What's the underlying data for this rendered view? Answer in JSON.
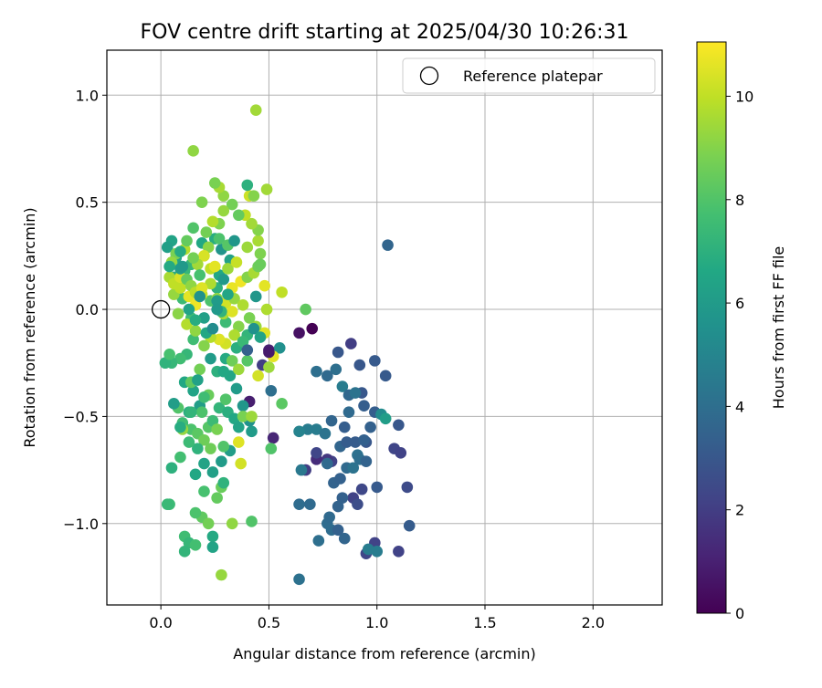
{
  "chart_data": {
    "type": "scatter",
    "title": "FOV centre drift starting at 2025/04/30 10:26:31",
    "xlabel": "Angular distance from reference (arcmin)",
    "ylabel": "Rotation from reference (arcmin)",
    "xlim": [
      -0.25,
      2.32
    ],
    "ylim": [
      -1.38,
      1.21
    ],
    "x_ticks": [
      0.0,
      0.5,
      1.0,
      1.5,
      2.0
    ],
    "x_tick_labels": [
      "0.0",
      "0.5",
      "1.0",
      "1.5",
      "2.0"
    ],
    "y_ticks": [
      -1.0,
      -0.5,
      0.0,
      0.5,
      1.0
    ],
    "y_tick_labels": [
      "−1.0",
      "−0.5",
      "0.0",
      "0.5",
      "1.0"
    ],
    "grid": true,
    "legend": {
      "position": "top-right",
      "entries": [
        "Reference platepar"
      ]
    },
    "reference_point": [
      0.0,
      0.0
    ],
    "colorbar": {
      "label": "Hours from first FF file",
      "colormap": "viridis",
      "min": 0,
      "max": 11.05,
      "ticks": [
        0,
        2,
        4,
        6,
        8,
        10
      ],
      "tick_labels": [
        "0",
        "2",
        "4",
        "6",
        "8",
        "10"
      ]
    },
    "points": [
      [
        0.93,
        -0.39,
        3.0
      ],
      [
        0.95,
        -0.62,
        3.0
      ],
      [
        1.0,
        -0.83,
        3.1
      ],
      [
        0.85,
        -0.55,
        3.3
      ],
      [
        0.9,
        -0.62,
        3.2
      ],
      [
        0.97,
        -0.55,
        3.4
      ],
      [
        1.1,
        -0.54,
        3.0
      ],
      [
        1.14,
        -0.83,
        2.5
      ],
      [
        1.15,
        -1.01,
        3.2
      ],
      [
        1.1,
        -1.13,
        2.2
      ],
      [
        0.99,
        -0.24,
        3.1
      ],
      [
        0.92,
        -0.26,
        3.0
      ],
      [
        0.82,
        -0.2,
        3.0
      ],
      [
        0.88,
        -0.16,
        2.0
      ],
      [
        1.04,
        -0.31,
        3.1
      ],
      [
        1.05,
        0.3,
        3.6
      ],
      [
        1.08,
        -0.65,
        2.3
      ],
      [
        1.11,
        -0.67,
        2.2
      ],
      [
        0.94,
        -0.45,
        3.3
      ],
      [
        0.99,
        -0.48,
        3.3
      ],
      [
        0.93,
        -0.84,
        2.4
      ],
      [
        0.89,
        -0.88,
        2.2
      ],
      [
        0.91,
        -0.91,
        2.6
      ],
      [
        0.95,
        -1.14,
        2.3
      ],
      [
        0.99,
        -1.09,
        2.2
      ],
      [
        0.83,
        -0.64,
        3.6
      ],
      [
        0.86,
        -0.74,
        3.8
      ],
      [
        0.8,
        -0.81,
        3.5
      ],
      [
        0.79,
        -0.71,
        2.2
      ],
      [
        0.77,
        -0.7,
        1.8
      ],
      [
        0.72,
        -0.7,
        1.4
      ],
      [
        0.67,
        -0.75,
        2.0
      ],
      [
        0.72,
        -0.67,
        2.3
      ],
      [
        0.79,
        -0.52,
        3.6
      ],
      [
        0.72,
        -0.56,
        4.6
      ],
      [
        0.68,
        -0.56,
        4.6
      ],
      [
        0.64,
        -0.57,
        4.9
      ],
      [
        0.76,
        -0.58,
        4.2
      ],
      [
        0.77,
        -0.72,
        3.8
      ],
      [
        0.83,
        -0.79,
        3.4
      ],
      [
        0.84,
        -0.88,
        3.4
      ],
      [
        0.82,
        -0.92,
        3.5
      ],
      [
        0.79,
        -1.03,
        3.9
      ],
      [
        0.82,
        -1.03,
        3.4
      ],
      [
        0.73,
        -1.08,
        4.0
      ],
      [
        0.77,
        -1.0,
        3.9
      ],
      [
        0.64,
        -1.26,
        4.1
      ],
      [
        0.64,
        -0.91,
        3.9
      ],
      [
        0.69,
        -0.91,
        3.8
      ],
      [
        0.78,
        -0.97,
        3.8
      ],
      [
        0.85,
        -1.07,
        3.6
      ],
      [
        0.96,
        -1.12,
        4.6
      ],
      [
        1.0,
        -1.13,
        4.6
      ],
      [
        0.72,
        -0.29,
        4.0
      ],
      [
        0.77,
        -0.31,
        3.8
      ],
      [
        0.81,
        -0.28,
        4.0
      ],
      [
        0.84,
        -0.36,
        4.6
      ],
      [
        0.87,
        -0.4,
        3.7
      ],
      [
        0.9,
        -0.39,
        4.2
      ],
      [
        0.87,
        -0.48,
        3.8
      ],
      [
        0.91,
        -0.68,
        4.1
      ],
      [
        0.89,
        -0.74,
        4.2
      ],
      [
        0.92,
        -0.7,
        4.0
      ],
      [
        0.95,
        -0.71,
        3.5
      ],
      [
        0.94,
        -0.61,
        3.4
      ],
      [
        0.86,
        -0.62,
        3.2
      ],
      [
        1.02,
        -0.49,
        5.3
      ],
      [
        1.04,
        -0.51,
        6.1
      ],
      [
        0.65,
        -0.75,
        4.4
      ],
      [
        0.64,
        -0.11,
        0.5
      ],
      [
        0.7,
        -0.09,
        0.0
      ],
      [
        0.41,
        -0.43,
        0.9
      ],
      [
        0.52,
        -0.6,
        1.2
      ],
      [
        0.5,
        -0.19,
        1.0
      ],
      [
        0.47,
        -0.26,
        2.0
      ],
      [
        0.51,
        -0.38,
        4.0
      ],
      [
        0.55,
        -0.18,
        5.5
      ],
      [
        0.42,
        -0.57,
        6.0
      ],
      [
        0.41,
        -0.52,
        5.6
      ],
      [
        0.38,
        -0.45,
        5.8
      ],
      [
        0.35,
        -0.37,
        6.0
      ],
      [
        0.32,
        -0.31,
        6.5
      ],
      [
        0.3,
        -0.23,
        6.7
      ],
      [
        0.35,
        -0.18,
        6.9
      ],
      [
        0.4,
        -0.12,
        7.2
      ],
      [
        0.3,
        -0.06,
        7.5
      ],
      [
        0.23,
        0.04,
        7.9
      ],
      [
        0.26,
        0.1,
        7.0
      ],
      [
        0.27,
        0.16,
        6.6
      ],
      [
        0.32,
        0.23,
        6.3
      ],
      [
        0.28,
        0.28,
        5.7
      ],
      [
        0.25,
        0.33,
        6.8
      ],
      [
        0.19,
        0.31,
        6.6
      ],
      [
        0.14,
        0.21,
        7.2
      ],
      [
        0.11,
        0.18,
        7.3
      ],
      [
        0.07,
        0.24,
        6.4
      ],
      [
        0.05,
        0.32,
        6.4
      ],
      [
        0.03,
        0.29,
        6.2
      ],
      [
        0.06,
        0.15,
        6.8
      ],
      [
        0.08,
        0.12,
        7.3
      ],
      [
        0.1,
        0.05,
        7.5
      ],
      [
        0.14,
        -0.04,
        7.6
      ],
      [
        0.15,
        -0.14,
        7.6
      ],
      [
        0.12,
        -0.21,
        7.3
      ],
      [
        0.09,
        -0.23,
        7.6
      ],
      [
        0.05,
        -0.25,
        7.3
      ],
      [
        0.02,
        -0.25,
        7.1
      ],
      [
        0.04,
        -0.21,
        7.8
      ],
      [
        0.11,
        -0.34,
        6.6
      ],
      [
        0.15,
        -0.38,
        6.4
      ],
      [
        0.18,
        -0.45,
        6.1
      ],
      [
        0.13,
        -0.48,
        6.9
      ],
      [
        0.1,
        -0.53,
        7.6
      ],
      [
        0.14,
        -0.56,
        7.9
      ],
      [
        0.17,
        -0.58,
        8.2
      ],
      [
        0.2,
        -0.61,
        8.6
      ],
      [
        0.22,
        -0.55,
        8.1
      ],
      [
        0.24,
        -0.52,
        7.5
      ],
      [
        0.27,
        -0.46,
        7.2
      ],
      [
        0.31,
        -0.48,
        6.9
      ],
      [
        0.34,
        -0.51,
        6.6
      ],
      [
        0.36,
        -0.55,
        6.4
      ],
      [
        0.32,
        -0.66,
        6.1
      ],
      [
        0.28,
        -0.71,
        6.0
      ],
      [
        0.24,
        -0.76,
        6.2
      ],
      [
        0.2,
        -0.72,
        6.4
      ],
      [
        0.16,
        -0.77,
        6.6
      ],
      [
        0.17,
        -0.65,
        7.1
      ],
      [
        0.13,
        -0.62,
        7.5
      ],
      [
        0.09,
        -0.69,
        7.7
      ],
      [
        0.05,
        -0.74,
        7.0
      ],
      [
        0.04,
        -0.91,
        7.5
      ],
      [
        0.03,
        -0.91,
        7.4
      ],
      [
        0.11,
        -1.06,
        7.6
      ],
      [
        0.13,
        -1.09,
        7.3
      ],
      [
        0.16,
        -1.1,
        7.7
      ],
      [
        0.11,
        -1.13,
        7.2
      ],
      [
        0.19,
        -0.97,
        8.3
      ],
      [
        0.22,
        -1.0,
        8.7
      ],
      [
        0.24,
        -1.06,
        6.7
      ],
      [
        0.24,
        -1.11,
        6.4
      ],
      [
        0.26,
        -0.88,
        8.4
      ],
      [
        0.28,
        -0.83,
        8.5
      ],
      [
        0.29,
        -0.81,
        7.1
      ],
      [
        0.33,
        -1.0,
        9.2
      ],
      [
        0.42,
        -0.99,
        8.0
      ],
      [
        0.28,
        -1.24,
        9.3
      ],
      [
        0.37,
        -0.72,
        10.3
      ],
      [
        0.36,
        -0.62,
        10.5
      ],
      [
        0.38,
        -0.5,
        8.8
      ],
      [
        0.42,
        -0.5,
        9.4
      ],
      [
        0.45,
        -0.31,
        10.3
      ],
      [
        0.5,
        -0.27,
        9.4
      ],
      [
        0.52,
        -0.22,
        10.6
      ],
      [
        0.48,
        -0.11,
        10.5
      ],
      [
        0.44,
        -0.08,
        9.4
      ],
      [
        0.41,
        -0.04,
        8.8
      ],
      [
        0.36,
        -0.08,
        9.0
      ],
      [
        0.34,
        -0.12,
        9.7
      ],
      [
        0.3,
        -0.16,
        10.3
      ],
      [
        0.27,
        -0.14,
        10.5
      ],
      [
        0.23,
        -0.13,
        9.8
      ],
      [
        0.2,
        -0.17,
        9.0
      ],
      [
        0.16,
        -0.1,
        9.2
      ],
      [
        0.12,
        -0.07,
        9.8
      ],
      [
        0.08,
        -0.02,
        9.1
      ],
      [
        0.06,
        0.07,
        9.3
      ],
      [
        0.09,
        0.1,
        10.0
      ],
      [
        0.13,
        0.06,
        10.6
      ],
      [
        0.16,
        0.02,
        10.8
      ],
      [
        0.19,
        0.07,
        10.1
      ],
      [
        0.23,
        0.12,
        9.7
      ],
      [
        0.26,
        0.05,
        9.2
      ],
      [
        0.29,
        -0.02,
        9.6
      ],
      [
        0.3,
        0.03,
        10.3
      ],
      [
        0.33,
        0.1,
        10.7
      ],
      [
        0.37,
        0.13,
        10.8
      ],
      [
        0.34,
        0.05,
        9.3
      ],
      [
        0.38,
        0.02,
        9.7
      ],
      [
        0.33,
        -0.01,
        10.5
      ],
      [
        0.4,
        0.15,
        9.0
      ],
      [
        0.43,
        0.17,
        9.6
      ],
      [
        0.45,
        0.2,
        8.6
      ],
      [
        0.46,
        0.26,
        8.9
      ],
      [
        0.45,
        0.32,
        9.6
      ],
      [
        0.45,
        0.37,
        9.0
      ],
      [
        0.42,
        0.4,
        9.5
      ],
      [
        0.39,
        0.44,
        10.0
      ],
      [
        0.36,
        0.44,
        8.4
      ],
      [
        0.33,
        0.49,
        8.7
      ],
      [
        0.29,
        0.53,
        9.2
      ],
      [
        0.27,
        0.57,
        9.6
      ],
      [
        0.25,
        0.59,
        8.8
      ],
      [
        0.29,
        0.46,
        9.3
      ],
      [
        0.27,
        0.4,
        8.9
      ],
      [
        0.24,
        0.41,
        9.8
      ],
      [
        0.21,
        0.36,
        8.7
      ],
      [
        0.22,
        0.29,
        9.1
      ],
      [
        0.2,
        0.25,
        10.4
      ],
      [
        0.17,
        0.21,
        9.5
      ],
      [
        0.15,
        0.24,
        8.7
      ],
      [
        0.11,
        0.28,
        9.8
      ],
      [
        0.07,
        0.26,
        8.8
      ],
      [
        0.05,
        0.22,
        9.3
      ],
      [
        0.04,
        0.15,
        9.6
      ],
      [
        0.06,
        0.12,
        10.0
      ],
      [
        0.09,
        0.15,
        10.4
      ],
      [
        0.12,
        0.14,
        8.4
      ],
      [
        0.14,
        0.11,
        9.2
      ],
      [
        0.16,
        0.08,
        9.9
      ],
      [
        0.19,
        0.1,
        10.5
      ],
      [
        0.23,
        0.19,
        10.0
      ],
      [
        0.25,
        0.2,
        10.6
      ],
      [
        0.31,
        0.19,
        9.4
      ],
      [
        0.35,
        0.22,
        10.1
      ],
      [
        0.4,
        0.29,
        9.4
      ],
      [
        0.41,
        0.53,
        10.2
      ],
      [
        0.43,
        0.53,
        9.0
      ],
      [
        0.49,
        0.56,
        9.5
      ],
      [
        0.46,
        0.21,
        8.5
      ],
      [
        0.48,
        0.11,
        10.6
      ],
      [
        0.49,
        0.0,
        9.7
      ],
      [
        0.56,
        0.08,
        10.0
      ],
      [
        0.67,
        0.0,
        8.3
      ],
      [
        0.56,
        -0.44,
        8.2
      ],
      [
        0.51,
        -0.65,
        8.0
      ],
      [
        0.44,
        0.93,
        9.5
      ],
      [
        0.15,
        0.74,
        9.2
      ],
      [
        0.19,
        0.5,
        8.9
      ],
      [
        0.15,
        0.38,
        8.0
      ],
      [
        0.27,
        0.33,
        7.9
      ],
      [
        0.31,
        0.3,
        8.1
      ],
      [
        0.4,
        0.58,
        7.0
      ],
      [
        0.2,
        -0.85,
        7.8
      ],
      [
        0.16,
        -0.95,
        7.9
      ],
      [
        0.26,
        -0.29,
        7.0
      ],
      [
        0.22,
        -0.4,
        8.5
      ],
      [
        0.19,
        -0.48,
        7.9
      ],
      [
        0.26,
        -0.56,
        8.8
      ],
      [
        0.3,
        -0.42,
        8.0
      ],
      [
        0.33,
        -0.24,
        8.6
      ],
      [
        0.4,
        -0.24,
        8.1
      ],
      [
        0.36,
        -0.28,
        9.4
      ],
      [
        0.14,
        -0.34,
        8.3
      ],
      [
        0.18,
        -0.28,
        8.7
      ],
      [
        0.08,
        -0.46,
        8.0
      ],
      [
        0.1,
        -0.56,
        9.3
      ],
      [
        0.23,
        -0.65,
        8.6
      ],
      [
        0.29,
        -0.64,
        8.0
      ],
      [
        0.06,
        -0.44,
        6.1
      ],
      [
        0.17,
        -0.33,
        6.3
      ],
      [
        0.23,
        -0.23,
        6.0
      ],
      [
        0.29,
        -0.29,
        6.6
      ],
      [
        0.2,
        -0.41,
        7.6
      ],
      [
        0.14,
        -0.48,
        7.2
      ],
      [
        0.09,
        -0.55,
        6.8
      ],
      [
        0.43,
        -0.09,
        5.6
      ],
      [
        0.46,
        -0.13,
        6.4
      ],
      [
        0.38,
        -0.15,
        7.4
      ],
      [
        0.44,
        0.06,
        5.8
      ],
      [
        0.31,
        0.07,
        6.5
      ],
      [
        0.26,
        0.04,
        6.0
      ],
      [
        0.2,
        -0.04,
        6.2
      ],
      [
        0.16,
        -0.05,
        6.8
      ],
      [
        0.13,
        0.0,
        6.4
      ],
      [
        0.21,
        -0.11,
        6.6
      ],
      [
        0.28,
        -0.01,
        7.1
      ],
      [
        0.26,
        0.0,
        5.9
      ],
      [
        0.24,
        -0.09,
        5.3
      ],
      [
        0.18,
        0.06,
        5.6
      ],
      [
        0.09,
        0.19,
        6.0
      ],
      [
        0.04,
        0.2,
        6.7
      ],
      [
        0.1,
        0.2,
        5.9
      ],
      [
        0.29,
        0.14,
        5.9
      ],
      [
        0.34,
        0.32,
        5.8
      ],
      [
        0.18,
        0.16,
        7.8
      ],
      [
        0.12,
        0.32,
        8.4
      ],
      [
        0.09,
        0.27,
        6.7
      ],
      [
        0.4,
        -0.19,
        3.4
      ],
      [
        0.5,
        -0.2,
        0.8
      ]
    ]
  }
}
